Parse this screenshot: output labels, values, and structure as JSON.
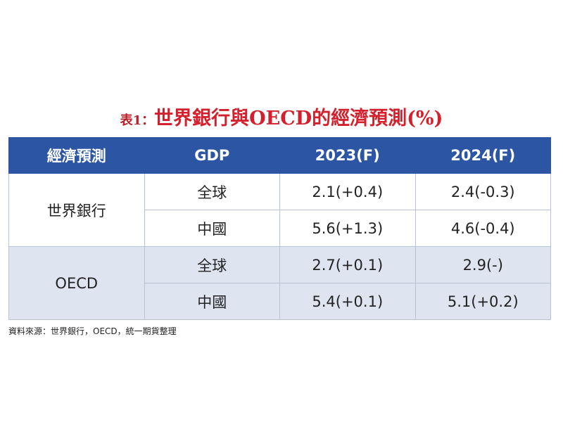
{
  "title": {
    "prefix": "表1：",
    "text": "世界銀行與OECD的經濟預測(%)"
  },
  "table": {
    "header": [
      "經濟預測",
      "GDP",
      "2023(F)",
      "2024(F)"
    ],
    "groups": [
      {
        "name": "世界銀行",
        "rows": [
          [
            "全球",
            "2.1(+0.4)",
            "2.4(-0.3)"
          ],
          [
            "中國",
            "5.6(+1.3)",
            "4.6(-0.4)"
          ]
        ]
      },
      {
        "name": "OECD",
        "rows": [
          [
            "全球",
            "2.7(+0.1)",
            "2.9(-)"
          ],
          [
            "中國",
            "5.4(+0.1)",
            "5.1(+0.2)"
          ]
        ]
      }
    ]
  },
  "source": "資料來源：世界銀行，OECD，統一期貨整理"
}
